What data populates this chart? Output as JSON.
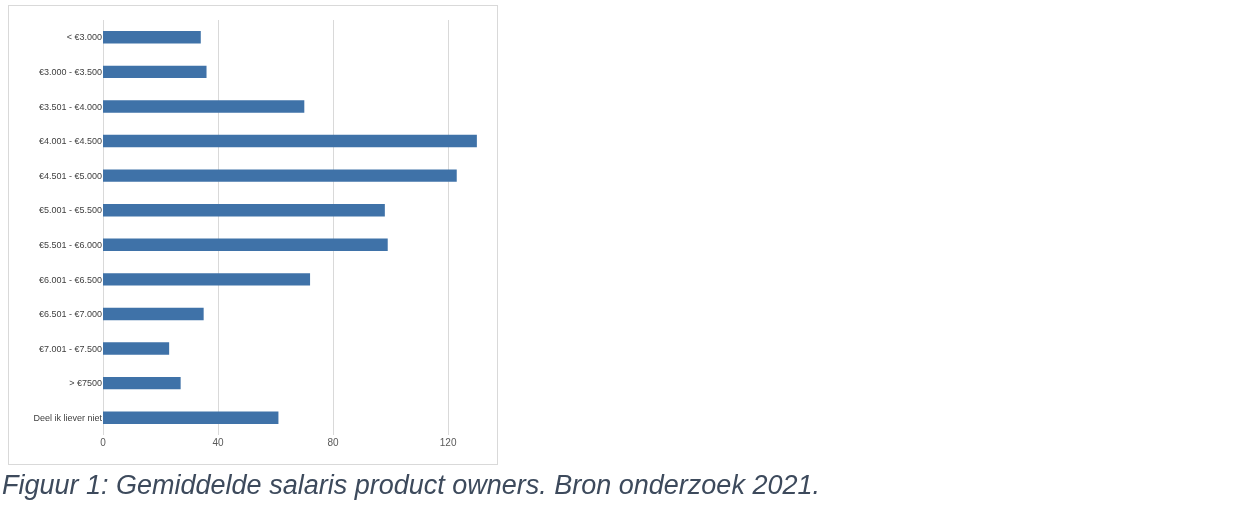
{
  "chart_data": {
    "type": "bar",
    "orientation": "horizontal",
    "categories": [
      "< €3.000",
      "€3.000 - €3.500",
      "€3.501 - €4.000",
      "€4.001 - €4.500",
      "€4.501 - €5.000",
      "€5.001 - €5.500",
      "€5.501 - €6.000",
      "€6.001 - €6.500",
      "€6.501 - €7.000",
      "€7.001 - €7.500",
      "> €7500",
      "Deel ik liever niet"
    ],
    "values": [
      34,
      36,
      70,
      130,
      123,
      98,
      99,
      72,
      35,
      23,
      27,
      61
    ],
    "color": "#3f72a8",
    "xlim": [
      0,
      137
    ],
    "xticks": [
      0,
      40,
      80,
      120
    ],
    "grid": "x",
    "annotations": [
      "Figuur 1: Gemiddelde salaris product owners. Bron onderzoek 2021."
    ]
  }
}
